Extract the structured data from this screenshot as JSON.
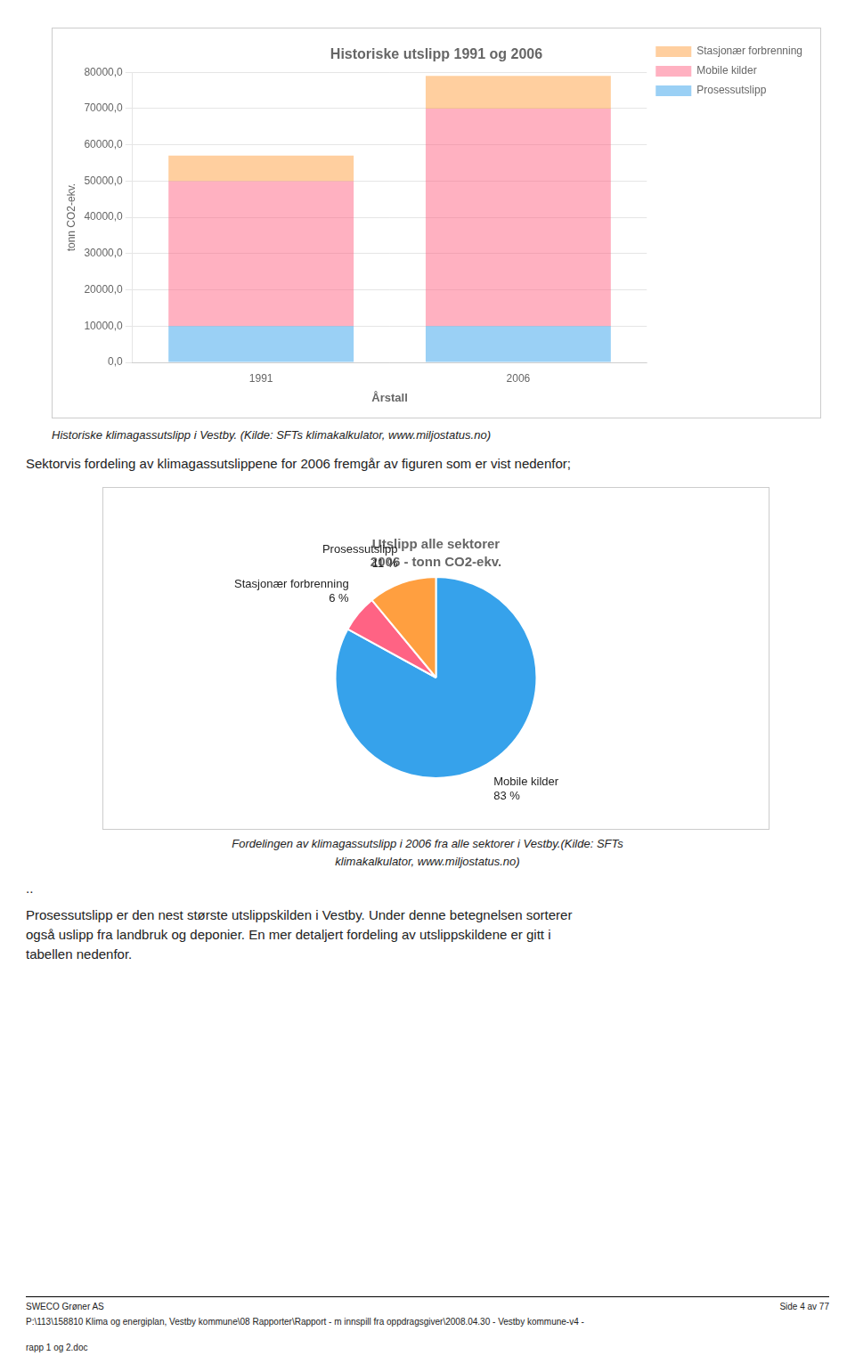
{
  "chart_data": [
    {
      "type": "bar",
      "title": "Historiske utslipp 1991 og 2006",
      "x_label": "Årstall",
      "y_label": "tonn CO2-ekv.",
      "categories": [
        "1991",
        "2006"
      ],
      "series": [
        {
          "name": "Prosessutslipp",
          "values": [
            10000,
            10000
          ]
        },
        {
          "name": "Mobile kilder",
          "values": [
            40000,
            60000
          ]
        },
        {
          "name": "Stasjonær forbrenning",
          "values": [
            7000,
            9000
          ]
        }
      ],
      "stacked": true,
      "ylim": [
        0,
        80000
      ],
      "yticks": [
        {
          "value": 0,
          "label": "0,0"
        },
        {
          "value": 10000,
          "label": "10000,0"
        },
        {
          "value": 20000,
          "label": "20000,0"
        },
        {
          "value": 30000,
          "label": "30000,0"
        },
        {
          "value": 40000,
          "label": "40000,0"
        },
        {
          "value": 50000,
          "label": "50000,0"
        },
        {
          "value": 60000,
          "label": "60000,0"
        },
        {
          "value": 70000,
          "label": "70000,0"
        },
        {
          "value": 80000,
          "label": "80000,0"
        }
      ],
      "grid": true,
      "legend": "right",
      "annotations": [
        "Historiske klimagassutslipp i Vestby. (Kilde: SFTs klimakalkulator, www.miljostatus.no)",
        "Sektorvis fordeling av klimagassutslippene for 2006 fremgår av figuren som er vist nedenfor;"
      ]
    },
    {
      "type": "pie",
      "title": "Utslipp alle sektorer",
      "subtitle": "2006 - tonn CO2-ekv.",
      "categories": [
        "Mobile kilder",
        "Stasjonær forbrenning",
        "Prosessutslipp"
      ],
      "values": [
        83,
        6,
        11
      ],
      "value_labels": [
        "83 %",
        "6 %",
        "11 %"
      ],
      "data_labels": true,
      "annotations": [
        "Fordelingen av klimagassutslipp i 2006 fra alle sektorer i Vestby.(Kilde: SFTs",
        "klimakalkulator, www.miljostatus.no)",
        "..",
        "Prosessutslipp er den nest største utslippskilden i Vestby. Under denne betegnelsen sorterer\nogså uslipp fra landbruk og deponier. En mer detaljert fordeling av utslippskildene er gitt i\ntabellen nedenfor.",
        "SWECO Grøner AS",
        "P:\\113\\158810 Klima og energiplan, Vestby kommune\\08 Rapporter\\Rapport - m innspill fra oppdragsgiver\\2008.04.30 - Vestby kommune-v4 -",
        "rapp 1 og 2.doc",
        "Side 4 av 77"
      ]
    }
  ]
}
